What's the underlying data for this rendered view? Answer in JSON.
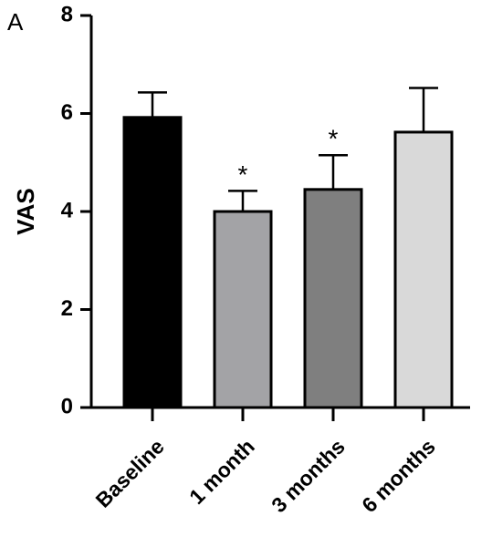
{
  "chart_data": {
    "type": "bar",
    "panel_label": "A",
    "ylabel": "VAS",
    "categories": [
      "Baseline",
      "1 month",
      "3 months",
      "6 months"
    ],
    "values": [
      5.92,
      4.0,
      4.45,
      5.62
    ],
    "errors": [
      0.51,
      0.42,
      0.7,
      0.9
    ],
    "colors": [
      "#000000",
      "#a3a3a6",
      "#7f7f7f",
      "#d9d9d9"
    ],
    "significance": [
      null,
      "*",
      "*",
      null
    ],
    "ylim": [
      0,
      8
    ],
    "yticks": [
      0,
      2,
      4,
      6,
      8
    ],
    "grid": false
  }
}
